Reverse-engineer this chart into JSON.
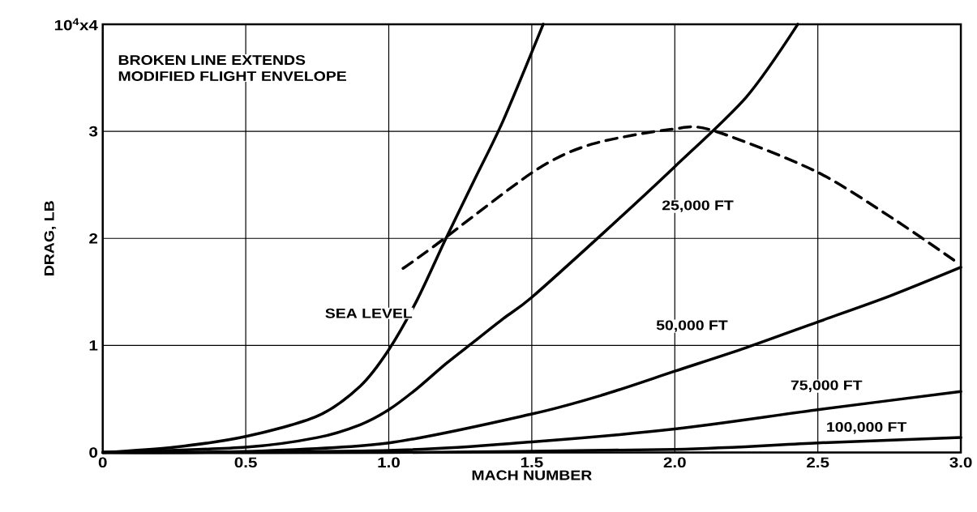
{
  "chart_data": {
    "type": "line",
    "xlabel": "MACH NUMBER",
    "ylabel": "DRAG, LB",
    "annotations": [
      "BROKEN LINE EXTENDS MODIFIED FLIGHT ENVELOPE"
    ],
    "xlim": [
      0,
      3
    ],
    "ylim": [
      0,
      4
    ],
    "xticks": [
      0,
      {
        "value": 0.5,
        "label": "0.5"
      },
      {
        "value": 1,
        "label": "1.0"
      },
      {
        "value": 1.5,
        "label": "1.5"
      },
      {
        "value": 2,
        "label": "2.0"
      },
      {
        "value": 2.5,
        "label": "2.5"
      },
      {
        "value": 3,
        "label": "3.0"
      }
    ],
    "yticks": [
      0,
      1,
      2,
      3,
      {
        "value": 4,
        "label": "10$^{4}$x4"
      }
    ],
    "grid": true,
    "marker": "none",
    "line_style": "solid",
    "series": [
      {
        "name": "SEA LEVEL",
        "color": "#000000",
        "x": [
          0,
          0.25,
          0.5,
          0.75,
          0.9,
          1.0,
          1.1,
          1.2,
          1.3,
          1.4,
          1.54
        ],
        "values": [
          0,
          0.05,
          0.15,
          0.34,
          0.62,
          0.96,
          1.43,
          2.0,
          2.55,
          3.1,
          4.0
        ]
      },
      {
        "name": "25,000 FT",
        "color": "#000000",
        "x": [
          0,
          0.5,
          0.75,
          0.9,
          1.0,
          1.1,
          1.2,
          1.3,
          1.4,
          1.5,
          1.75,
          2.0,
          2.25,
          2.43
        ],
        "values": [
          0,
          0.05,
          0.14,
          0.26,
          0.4,
          0.6,
          0.83,
          1.04,
          1.25,
          1.45,
          2.05,
          2.67,
          3.32,
          4.0
        ]
      },
      {
        "name": "50,000 FT",
        "color": "#000000",
        "x": [
          0,
          0.5,
          1.0,
          1.5,
          1.75,
          2.0,
          2.25,
          2.5,
          2.75,
          3.0
        ],
        "values": [
          0,
          0.01,
          0.09,
          0.36,
          0.54,
          0.76,
          0.98,
          1.22,
          1.46,
          1.73
        ]
      },
      {
        "name": "75,000 FT",
        "color": "#000000",
        "x": [
          0,
          1.0,
          1.5,
          2.0,
          2.5,
          3.0
        ],
        "values": [
          0,
          0.02,
          0.1,
          0.22,
          0.4,
          0.57
        ]
      },
      {
        "name": "100,000 FT",
        "color": "#000000",
        "x": [
          0,
          1.0,
          2.0,
          2.5,
          3.0
        ],
        "values": [
          0,
          0.0,
          0.03,
          0.09,
          0.14
        ]
      },
      {
        "color": "#000000",
        "line_style": "dashed",
        "x": [
          1.05,
          1.16,
          1.51,
          1.71,
          1.99,
          2.13,
          2.49,
          2.76,
          2.99
        ],
        "values": [
          1.72,
          1.93,
          2.63,
          2.88,
          3.02,
          3.01,
          2.63,
          2.19,
          1.77
        ]
      }
    ]
  }
}
